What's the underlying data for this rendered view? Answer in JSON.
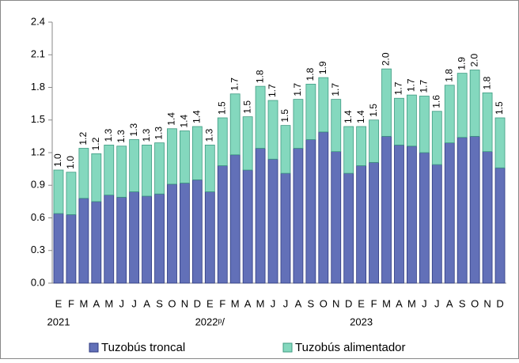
{
  "chart_data": {
    "type": "stacked-bar",
    "categories": [
      "E",
      "F",
      "M",
      "A",
      "M",
      "J",
      "J",
      "A",
      "S",
      "O",
      "N",
      "D",
      "E",
      "F",
      "M",
      "A",
      "M",
      "J",
      "J",
      "A",
      "S",
      "O",
      "N",
      "D",
      "E",
      "F",
      "M",
      "A",
      "M",
      "J",
      "J",
      "A",
      "S",
      "O",
      "N",
      "D"
    ],
    "years": [
      "2021",
      "2022ᵖ/",
      "2023"
    ],
    "series": [
      {
        "name": "Tuzobús troncal",
        "color": "#6270b8",
        "edge": "#2e3a80",
        "values": [
          0.64,
          0.63,
          0.78,
          0.75,
          0.81,
          0.79,
          0.84,
          0.8,
          0.82,
          0.91,
          0.92,
          0.95,
          0.84,
          1.08,
          1.18,
          1.04,
          1.24,
          1.14,
          1.01,
          1.24,
          1.32,
          1.39,
          1.21,
          1.01,
          1.08,
          1.11,
          1.35,
          1.27,
          1.26,
          1.2,
          1.09,
          1.29,
          1.34,
          1.35,
          1.21,
          1.06
        ]
      },
      {
        "name": "Tuzobús alimentador",
        "color": "#84d8be",
        "edge": "#3f9c82",
        "values": [
          0.4,
          0.39,
          0.46,
          0.44,
          0.46,
          0.47,
          0.48,
          0.47,
          0.47,
          0.51,
          0.48,
          0.49,
          0.43,
          0.44,
          0.56,
          0.49,
          0.57,
          0.54,
          0.44,
          0.45,
          0.51,
          0.5,
          0.48,
          0.43,
          0.36,
          0.39,
          0.62,
          0.43,
          0.47,
          0.52,
          0.49,
          0.53,
          0.59,
          0.61,
          0.54,
          0.46
        ]
      }
    ],
    "totals": {
      "values": [
        1.04,
        1.02,
        1.24,
        1.19,
        1.27,
        1.26,
        1.32,
        1.27,
        1.29,
        1.42,
        1.4,
        1.44,
        1.27,
        1.52,
        1.74,
        1.53,
        1.81,
        1.68,
        1.45,
        1.69,
        1.83,
        1.89,
        1.69,
        1.44,
        1.44,
        1.5,
        1.97,
        1.7,
        1.73,
        1.72,
        1.58,
        1.82,
        1.93,
        1.96,
        1.75,
        1.52
      ],
      "value_labels": [
        "1.0",
        "1.0",
        "1.2",
        "1.2",
        "1.3",
        "1.3",
        "1.3",
        "1.3",
        "1.3",
        "1.4",
        "1.4",
        "1.4",
        "1.3",
        "1.5",
        "1.7",
        "1.5",
        "1.8",
        "1.7",
        "1.5",
        "1.7",
        "1.8",
        "1.9",
        "1.7",
        "1.4",
        "1.4",
        "1.5",
        "2.0",
        "1.7",
        "1.7",
        "1.7",
        "1.6",
        "1.8",
        "1.9",
        "2.0",
        "1.8",
        "1.5"
      ]
    },
    "ylim": [
      0,
      2.4
    ],
    "yticks": [
      {
        "value": 0,
        "label": "0.0"
      },
      0.3,
      0.6,
      0.9,
      1.2,
      1.5,
      1.8,
      2.1,
      2.4
    ],
    "legend": "bottom"
  }
}
